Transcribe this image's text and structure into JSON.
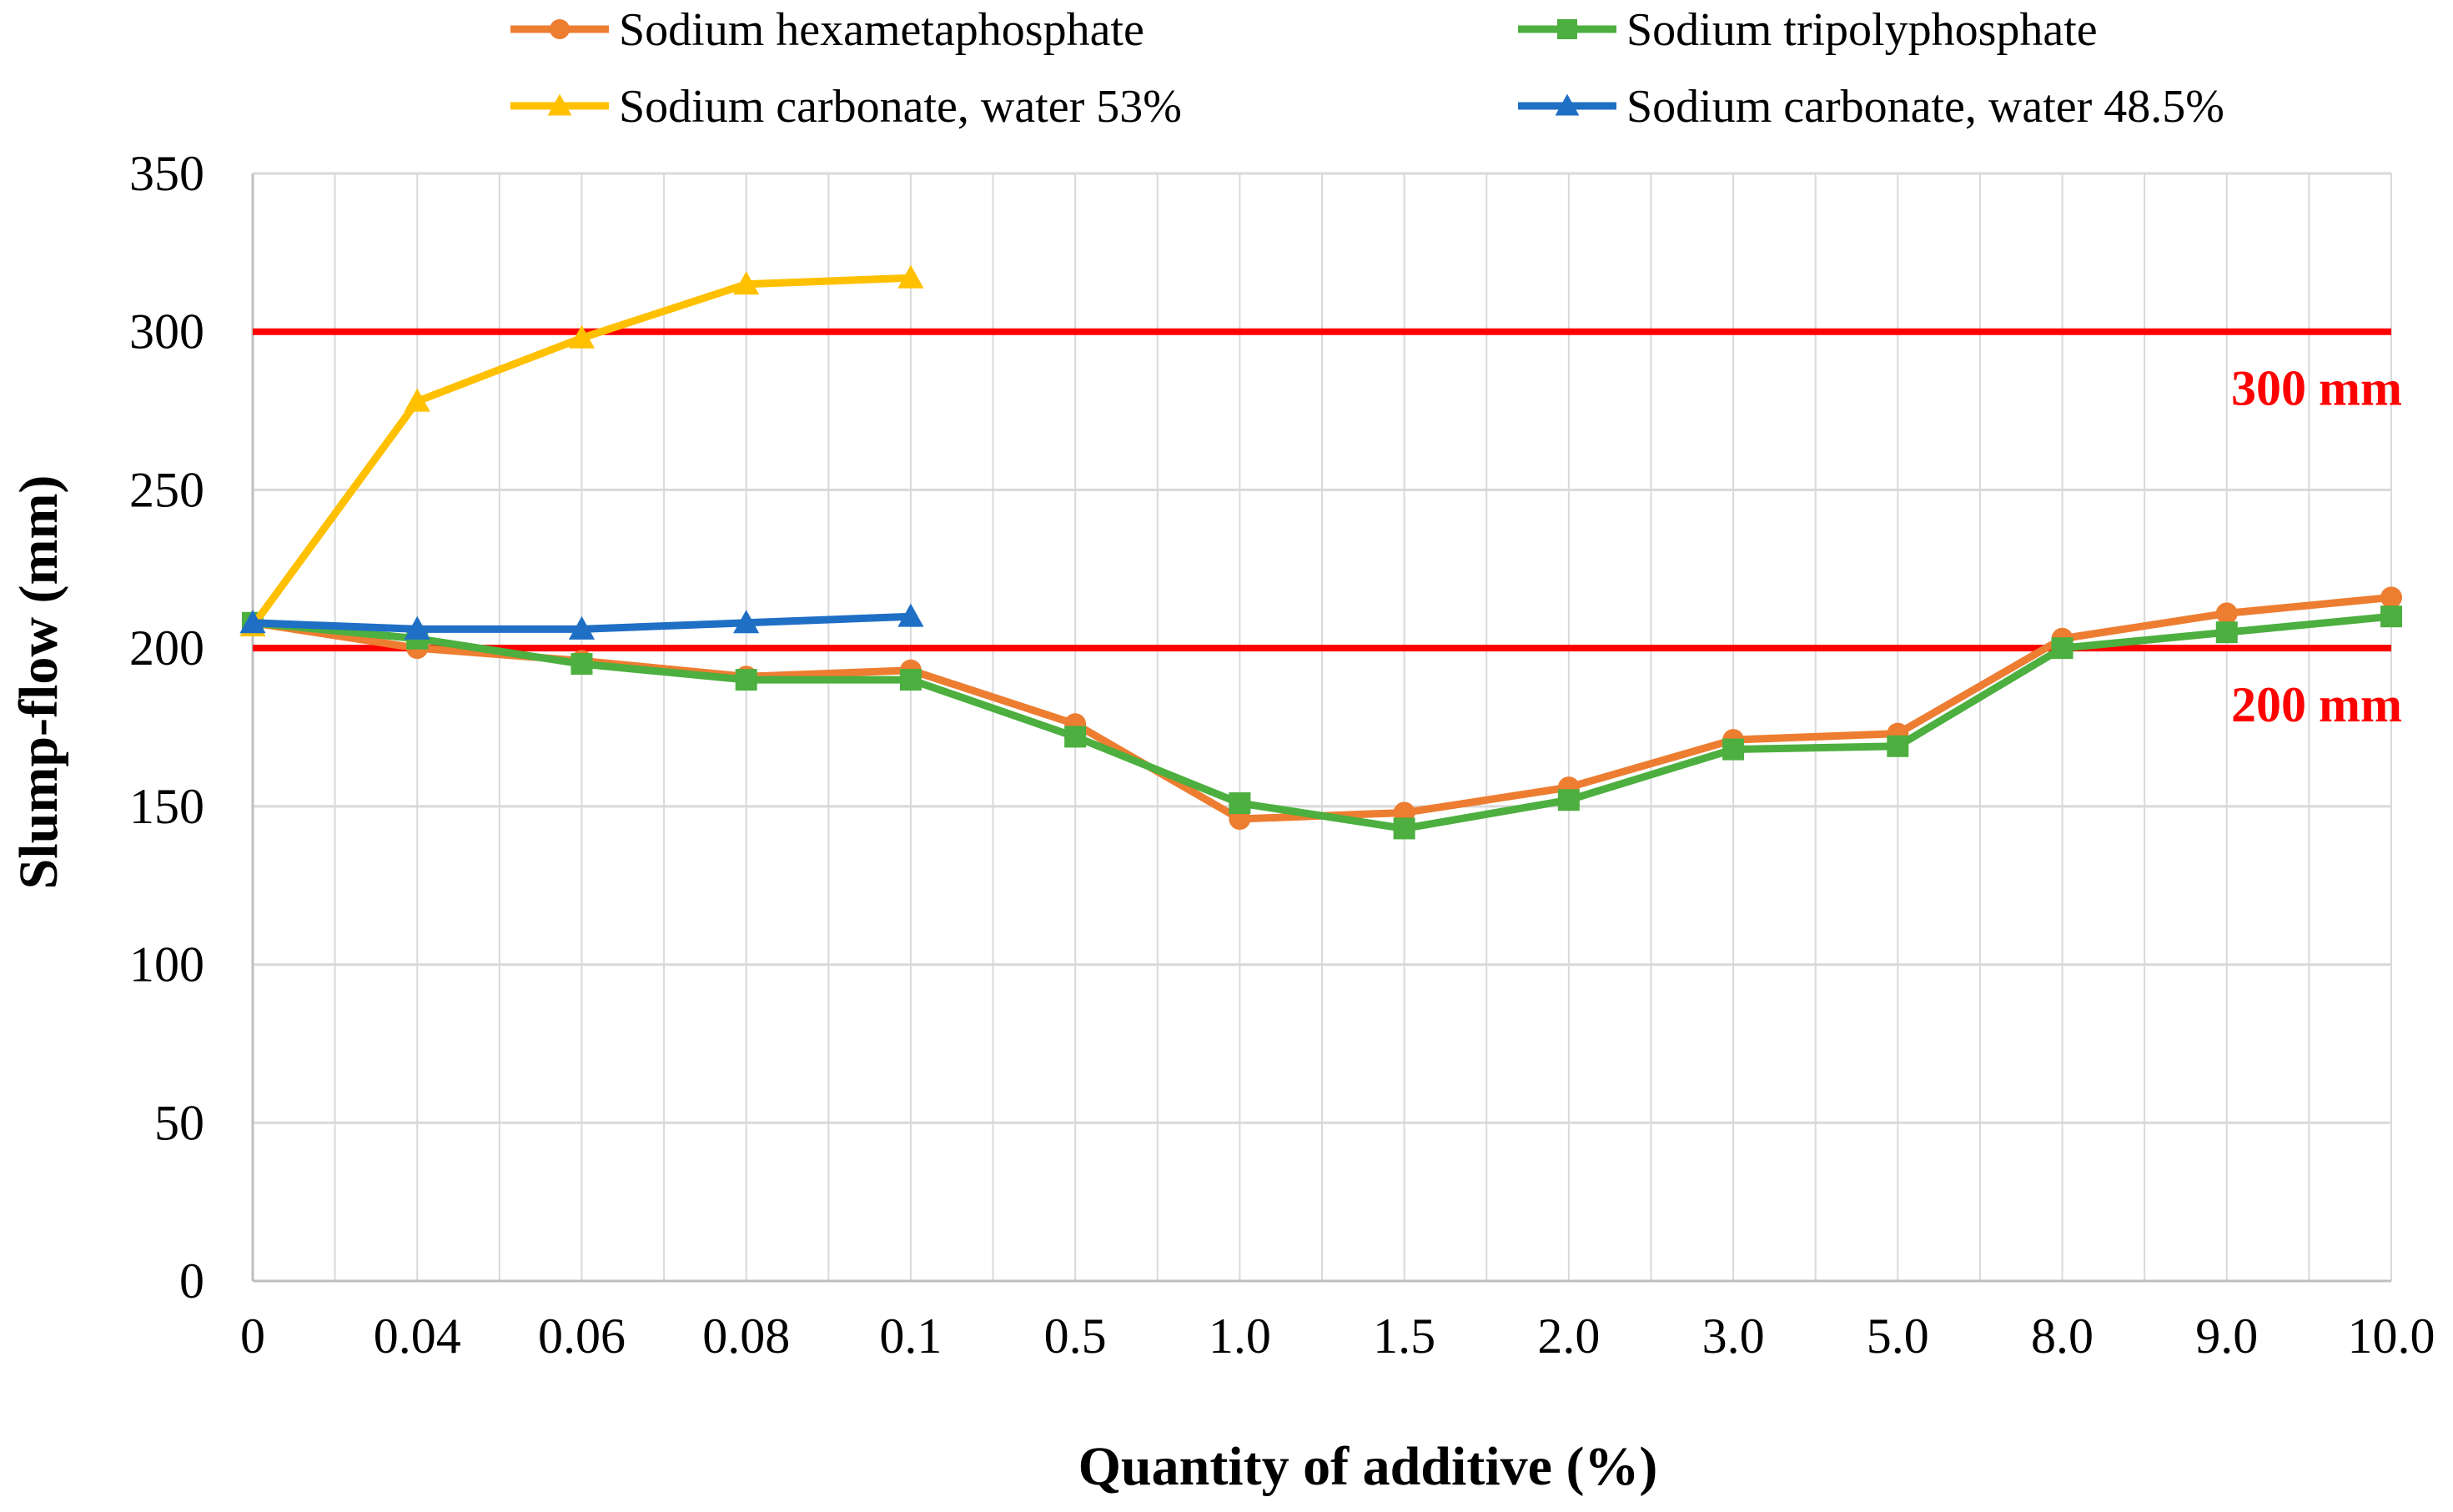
{
  "chart_data": {
    "type": "line",
    "title": "",
    "xlabel": "Quantity of additive (%)",
    "ylabel": "Slump-flow (mm)",
    "ylim": [
      0,
      350
    ],
    "yticks": [
      "0",
      "50",
      "100",
      "150",
      "200",
      "250",
      "300",
      "350"
    ],
    "categories": [
      "0",
      "0.04",
      "0.06",
      "0.08",
      "0.1",
      "0.5",
      "1.0",
      "1.5",
      "2.0",
      "3.0",
      "5.0",
      "8.0",
      "9.0",
      "10.0"
    ],
    "grid": true,
    "legend_position": "top",
    "series": [
      {
        "name": "Sodium hexametaphosphate",
        "marker": "circle",
        "color": "#ED7D31",
        "values": [
          208,
          200,
          196,
          191,
          193,
          176,
          146,
          148,
          156,
          171,
          173,
          203,
          211,
          216
        ]
      },
      {
        "name": "Sodium tripolyphosphate",
        "marker": "square",
        "color": "#4CAF3F",
        "values": [
          208,
          203,
          195,
          190,
          190,
          172,
          151,
          143,
          152,
          168,
          169,
          200,
          205,
          210
        ]
      },
      {
        "name": "Sodium carbonate, water 53%",
        "marker": "triangle",
        "color": "#FFC000",
        "values": [
          207,
          278,
          298,
          315,
          317,
          null,
          null,
          null,
          null,
          null,
          null,
          null,
          null,
          null
        ]
      },
      {
        "name": "Sodium carbonate, water 48.5%",
        "marker": "triangle",
        "color": "#1F6FC5",
        "values": [
          208,
          206,
          206,
          208,
          210,
          null,
          null,
          null,
          null,
          null,
          null,
          null,
          null,
          null
        ]
      }
    ],
    "reference_lines": [
      {
        "value": 300,
        "label": "300 mm",
        "color": "#FF0000"
      },
      {
        "value": 200,
        "label": "200 mm",
        "color": "#FF0000"
      }
    ]
  }
}
